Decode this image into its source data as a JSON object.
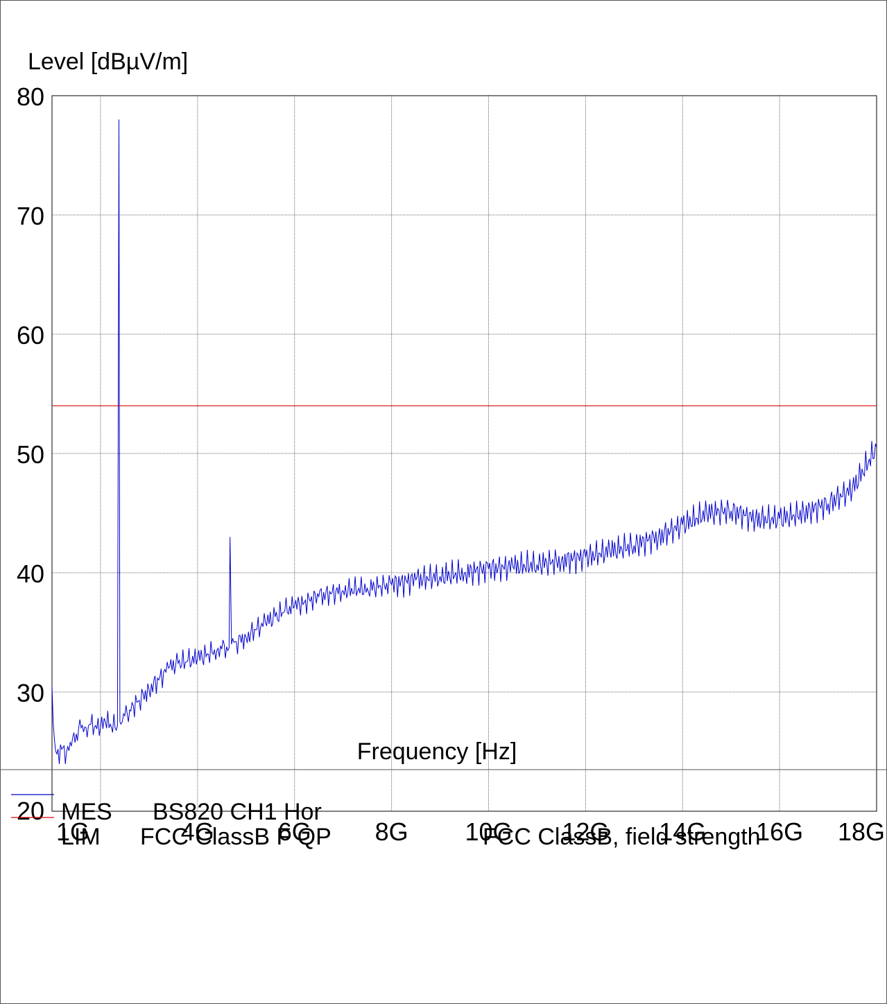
{
  "chart_data": {
    "type": "line",
    "ylabel": "Level [dBµV/m]",
    "xlabel": "Frequency [Hz]",
    "ylim": [
      20,
      80
    ],
    "xlim": [
      1,
      18
    ],
    "yticks": [
      20,
      30,
      40,
      50,
      60,
      70,
      80
    ],
    "yticklabels": [
      "20",
      "30",
      "40",
      "50",
      "60",
      "70",
      "80"
    ],
    "xticks": [
      1,
      4,
      6,
      8,
      10,
      12,
      14,
      16,
      18
    ],
    "xticklabels": [
      "1G",
      "4G",
      "6G",
      "8G",
      "10G",
      "12G",
      "14G",
      "16G",
      "18G"
    ],
    "xgrid": [
      2,
      4,
      6,
      8,
      10,
      12,
      14,
      16
    ],
    "ygrid": [
      30,
      40,
      50,
      60,
      70
    ],
    "grid": true,
    "x_unit": "GHz",
    "series": [
      {
        "name": "MES BS820 CH1 Hor",
        "color": "#0000cc",
        "x": [
          1.0,
          1.05,
          1.1,
          1.2,
          1.3,
          1.4,
          1.5,
          1.6,
          1.7,
          1.8,
          1.9,
          2.0,
          2.1,
          2.2,
          2.3,
          2.35,
          2.38,
          2.4,
          2.42,
          2.45,
          2.5,
          2.6,
          2.8,
          3.0,
          3.2,
          3.4,
          3.6,
          3.8,
          4.0,
          4.2,
          4.4,
          4.5,
          4.6,
          4.65,
          4.67,
          4.7,
          4.8,
          5.0,
          5.2,
          5.4,
          5.6,
          5.8,
          6.0,
          6.2,
          6.5,
          7.0,
          7.5,
          8.0,
          8.5,
          9.0,
          9.5,
          10.0,
          10.5,
          11.0,
          11.5,
          12.0,
          12.5,
          13.0,
          13.5,
          14.0,
          14.5,
          15.0,
          15.5,
          16.0,
          16.5,
          17.0,
          17.5,
          18.0
        ],
        "y": [
          30.5,
          26.0,
          24.8,
          25.2,
          25.0,
          25.5,
          26.5,
          27.0,
          27.0,
          27.3,
          27.2,
          27.0,
          27.5,
          27.3,
          27.0,
          27.2,
          78.0,
          27.5,
          27.3,
          27.5,
          28.0,
          28.5,
          29.3,
          30.2,
          31.0,
          32.0,
          32.4,
          32.6,
          32.8,
          33.2,
          33.5,
          33.6,
          33.8,
          33.7,
          43.0,
          34.0,
          34.2,
          34.6,
          35.2,
          35.8,
          36.3,
          36.8,
          37.2,
          37.5,
          38.0,
          38.5,
          38.7,
          39.0,
          39.4,
          39.7,
          40.0,
          40.3,
          40.5,
          40.7,
          41.0,
          41.3,
          41.8,
          42.3,
          43.0,
          44.0,
          45.0,
          45.2,
          44.5,
          44.5,
          45.0,
          45.8,
          47.0,
          50.5
        ]
      },
      {
        "name": "LIM FCC ClassB F QP",
        "color": "#dd0000",
        "x": [
          1.0,
          18.0
        ],
        "y": [
          54.0,
          54.0
        ]
      }
    ]
  },
  "legend": {
    "mes_label": "MES",
    "mes_name": "BS820 CH1 Hor",
    "lim_label": "LIM",
    "lim_name": "FCC ClassB F QP",
    "lim_desc": "FCC ClassB, field strength",
    "mes_color": "#0000cc",
    "lim_color": "#dd0000"
  }
}
